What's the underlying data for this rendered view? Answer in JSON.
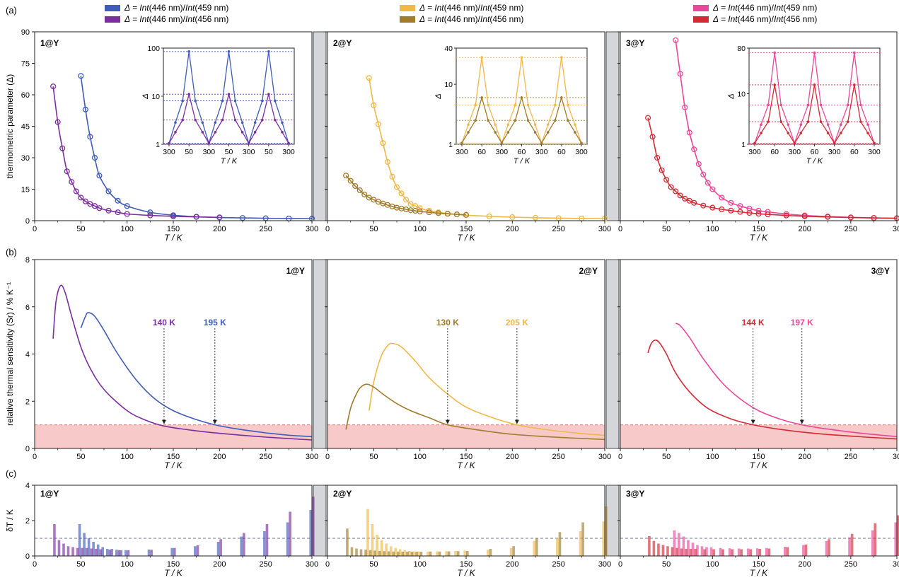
{
  "figure": {
    "panel_labels": [
      "(a)",
      "(b)",
      "(c)"
    ]
  },
  "legend": {
    "prefix": "Δ = ",
    "int_word": "Int",
    "line_459_tail": "(446 nm)/",
    "line_459_end": "(459 nm)",
    "line_456_end": "(456 nm)",
    "groups": [
      {
        "id": "1",
        "color_459": "#3f5cb8",
        "color_456": "#7b2f9e"
      },
      {
        "id": "2",
        "color_459": "#f0b847",
        "color_456": "#a07c2c"
      },
      {
        "id": "3",
        "color_459": "#e8489a",
        "color_456": "#d42a36"
      }
    ]
  },
  "axes": {
    "a_ylabel": "thermometric parameter (Δ)",
    "b_ylabel": "relative thermal sensitivity (Sr) / % K⁻¹",
    "c_ylabel": "δT / K",
    "xlabel": "T / K",
    "inset_ylabel": "Δ",
    "a_yticks": [
      "0",
      "15",
      "30",
      "45",
      "60",
      "75",
      "90"
    ],
    "b_yticks": [
      "0",
      "2",
      "4",
      "6",
      "8"
    ],
    "c_yticks": [
      "0",
      "2",
      "4"
    ],
    "xticks": [
      "0",
      "50",
      "100",
      "150",
      "200",
      "250",
      "300"
    ],
    "xticks_last_panel3": "30"
  },
  "sample_titles": [
    "1@Y",
    "2@Y",
    "3@Y"
  ],
  "insets": [
    {
      "yticks": [
        "1",
        "10",
        "100"
      ],
      "xticks": [
        "300",
        "50",
        "300",
        "50",
        "300",
        "50",
        "300"
      ]
    },
    {
      "yticks": [
        "1",
        "10",
        "40"
      ],
      "xticks": [
        "300",
        "60",
        "300",
        "60",
        "300",
        "60",
        "300"
      ]
    },
    {
      "yticks": [
        "1",
        "10",
        "80"
      ],
      "xticks": [
        "300",
        "60",
        "300",
        "60",
        "300",
        "60",
        "300"
      ]
    }
  ],
  "chart_data": [
    {
      "type": "scatter",
      "panel": "a",
      "title": "1@Y",
      "xlabel": "T / K",
      "ylabel": "thermometric parameter (Δ)",
      "xlim": [
        0,
        300
      ],
      "ylim": [
        0,
        90
      ],
      "series": [
        {
          "name": "Δ = Int(446 nm)/Int(459 nm)",
          "color": "#3f5cb8",
          "x": [
            50,
            55,
            60,
            65,
            70,
            80,
            90,
            100,
            125,
            150,
            175,
            200,
            225,
            250,
            275,
            300
          ],
          "y": [
            69,
            53,
            40,
            30,
            21.5,
            14,
            9.5,
            7,
            4,
            2.6,
            1.9,
            1.5,
            1.3,
            1.15,
            1.05,
            1
          ]
        },
        {
          "name": "Δ = Int(446 nm)/Int(456 nm)",
          "color": "#7b2f9e",
          "x": [
            20,
            25,
            30,
            35,
            40,
            45,
            50,
            55,
            60,
            65,
            70,
            80,
            90,
            100,
            125,
            150,
            175,
            200
          ],
          "y": [
            64,
            47,
            34.5,
            23.5,
            18.5,
            14,
            11,
            9.2,
            8,
            7,
            6,
            4.8,
            4,
            3.2,
            2.5,
            2.1,
            1.8,
            1.6
          ]
        }
      ],
      "inset": {
        "yscale": "log",
        "ylim": [
          1,
          100
        ],
        "peak_459": 85,
        "peak_456": 11,
        "mid_459": 8,
        "mid_456": 3.2
      }
    },
    {
      "type": "scatter",
      "panel": "a",
      "title": "2@Y",
      "xlabel": "T / K",
      "xlim": [
        0,
        300
      ],
      "ylim": [
        0,
        90
      ],
      "series": [
        {
          "name": "Δ = Int(446 nm)/Int(459 nm)",
          "color": "#f0b847",
          "x": [
            45,
            50,
            55,
            60,
            65,
            70,
            75,
            80,
            85,
            90,
            95,
            100,
            110,
            120,
            130,
            140,
            150,
            175,
            200,
            225,
            250,
            275,
            300
          ],
          "y": [
            68,
            55,
            46,
            37,
            28,
            21,
            16,
            13,
            10,
            8,
            7,
            6,
            4.8,
            4,
            3.4,
            3,
            2.6,
            2.1,
            1.7,
            1.4,
            1.2,
            1.05,
            1
          ]
        },
        {
          "name": "Δ = Int(446 nm)/Int(456 nm)",
          "color": "#a07c2c",
          "x": [
            20,
            25,
            30,
            35,
            40,
            45,
            50,
            55,
            60,
            65,
            70,
            75,
            80,
            85,
            90,
            95,
            100,
            110,
            120,
            130,
            140,
            150
          ],
          "y": [
            21.5,
            19,
            16.5,
            14.5,
            12.5,
            11,
            10,
            9,
            8.2,
            7.5,
            6.8,
            6.2,
            5.8,
            5.4,
            5,
            4.7,
            4.4,
            4,
            3.6,
            3.3,
            3,
            2.8
          ]
        }
      ],
      "inset": {
        "yscale": "log",
        "ylim": [
          1,
          40
        ],
        "peak_459": 28,
        "peak_456": 6,
        "mid_459": 4.5,
        "mid_456": 2.5
      }
    },
    {
      "type": "scatter",
      "panel": "a",
      "title": "3@Y",
      "xlabel": "T / K",
      "xlim": [
        0,
        300
      ],
      "ylim": [
        0,
        90
      ],
      "series": [
        {
          "name": "Δ = Int(446 nm)/Int(459 nm)",
          "color": "#e8489a",
          "x": [
            60,
            65,
            70,
            75,
            80,
            85,
            90,
            95,
            100,
            110,
            120,
            130,
            140,
            150,
            160,
            180,
            200,
            225,
            250,
            275,
            300
          ],
          "y": [
            86,
            70,
            54,
            42,
            34,
            27,
            22,
            18,
            15,
            11,
            8.5,
            7,
            5.8,
            4.8,
            4.2,
            3.2,
            2.5,
            2,
            1.6,
            1.3,
            1.15
          ]
        },
        {
          "name": "Δ = Int(446 nm)/Int(456 nm)",
          "color": "#d42a36",
          "x": [
            30,
            35,
            40,
            45,
            50,
            55,
            60,
            65,
            70,
            75,
            80,
            90,
            100,
            110,
            120,
            130,
            140,
            150,
            160,
            180,
            200,
            225,
            250,
            275,
            300
          ],
          "y": [
            49,
            40,
            30,
            24,
            19.5,
            16,
            14,
            12,
            10.5,
            9.5,
            8.5,
            7.2,
            6.2,
            5.4,
            4.8,
            4.2,
            3.7,
            3.3,
            3,
            2.5,
            2.1,
            1.8,
            1.5,
            1.3,
            1.15
          ]
        }
      ],
      "inset": {
        "yscale": "log",
        "ylim": [
          1,
          80
        ],
        "peak_459": 65,
        "peak_456": 15,
        "mid_459": 6,
        "mid_456": 2.8
      }
    },
    {
      "type": "line",
      "panel": "b",
      "title": "1@Y",
      "xlabel": "T / K",
      "ylabel": "relative thermal sensitivity (Sr) / % K⁻¹",
      "xlim": [
        0,
        300
      ],
      "ylim": [
        0,
        8
      ],
      "threshold": 1,
      "series": [
        {
          "name": "Δ = Int(446 nm)/Int(459 nm)",
          "color": "#3f5cb8",
          "x": [
            50,
            55,
            58,
            65,
            75,
            90,
            110,
            130,
            150,
            175,
            195,
            220,
            250,
            275,
            300
          ],
          "y": [
            5.1,
            5.6,
            5.75,
            5.6,
            5,
            4,
            2.9,
            2.1,
            1.6,
            1.22,
            1,
            0.82,
            0.66,
            0.56,
            0.5
          ]
        },
        {
          "name": "Δ = Int(446 nm)/Int(456 nm)",
          "color": "#7b2f9e",
          "x": [
            20,
            23,
            28,
            33,
            40,
            50,
            60,
            75,
            100,
            120,
            140,
            170,
            200,
            250,
            300
          ],
          "y": [
            4.65,
            6.2,
            6.9,
            6.6,
            5.6,
            4.3,
            3.4,
            2.5,
            1.6,
            1.2,
            0.95,
            0.77,
            0.64,
            0.48,
            0.36
          ]
        }
      ],
      "annotations": [
        {
          "text": "140 K",
          "x": 140,
          "color": "#7b2f9e"
        },
        {
          "text": "195 K",
          "x": 195,
          "color": "#3f5cb8"
        }
      ]
    },
    {
      "type": "line",
      "panel": "b",
      "title": "2@Y",
      "xlabel": "T / K",
      "xlim": [
        0,
        300
      ],
      "ylim": [
        0,
        8
      ],
      "threshold": 1,
      "series": [
        {
          "name": "Δ = Int(446 nm)/Int(459 nm)",
          "color": "#f0b847",
          "x": [
            45,
            50,
            58,
            65,
            70,
            80,
            95,
            110,
            130,
            150,
            175,
            205,
            240,
            270,
            300
          ],
          "y": [
            1.6,
            2.8,
            3.9,
            4.35,
            4.45,
            4.3,
            3.7,
            3,
            2.3,
            1.75,
            1.35,
            1,
            0.78,
            0.65,
            0.55
          ]
        },
        {
          "name": "Δ = Int(446 nm)/Int(456 nm)",
          "color": "#a07c2c",
          "x": [
            20,
            25,
            30,
            35,
            42,
            50,
            60,
            75,
            90,
            110,
            130,
            160,
            200,
            250,
            300
          ],
          "y": [
            0.8,
            1.7,
            2.2,
            2.55,
            2.72,
            2.6,
            2.3,
            1.9,
            1.6,
            1.3,
            1,
            0.8,
            0.6,
            0.47,
            0.38
          ]
        }
      ],
      "annotations": [
        {
          "text": "130 K",
          "x": 130,
          "color": "#a07c2c"
        },
        {
          "text": "205 K",
          "x": 205,
          "color": "#f0b847"
        }
      ]
    },
    {
      "type": "line",
      "panel": "b",
      "title": "3@Y",
      "xlabel": "T / K",
      "xlim": [
        0,
        300
      ],
      "ylim": [
        0,
        8
      ],
      "threshold": 1,
      "series": [
        {
          "name": "Δ = Int(446 nm)/Int(459 nm)",
          "color": "#e8489a",
          "x": [
            60,
            65,
            75,
            90,
            110,
            130,
            150,
            175,
            197,
            225,
            260,
            300
          ],
          "y": [
            5.3,
            5.2,
            4.7,
            3.8,
            2.8,
            2.1,
            1.6,
            1.22,
            1,
            0.82,
            0.65,
            0.5
          ]
        },
        {
          "name": "Δ = Int(446 nm)/Int(456 nm)",
          "color": "#d42a36",
          "x": [
            30,
            33,
            37,
            42,
            50,
            60,
            75,
            95,
            120,
            144,
            175,
            210,
            250,
            300
          ],
          "y": [
            4.05,
            4.4,
            4.58,
            4.5,
            4,
            3.2,
            2.4,
            1.7,
            1.25,
            1,
            0.8,
            0.64,
            0.52,
            0.4
          ]
        }
      ],
      "annotations": [
        {
          "text": "144 K",
          "x": 144,
          "color": "#d42a36"
        },
        {
          "text": "197 K",
          "x": 197,
          "color": "#e8489a"
        }
      ]
    },
    {
      "type": "bar",
      "panel": "c",
      "title": "1@Y",
      "xlabel": "T / K",
      "ylabel": "δT / K",
      "xlim": [
        0,
        300
      ],
      "ylim": [
        0,
        4
      ],
      "series": [
        {
          "name": "Δ = Int(446 nm)/Int(459 nm)",
          "color": "#3f5cb8",
          "x": [
            50,
            55,
            60,
            65,
            70,
            75,
            80,
            85,
            90,
            95,
            100,
            125,
            150,
            175,
            200,
            225,
            250,
            275,
            300
          ],
          "y": [
            1.8,
            1.3,
            1.0,
            0.8,
            0.65,
            0.5,
            0.4,
            0.4,
            0.35,
            0.32,
            0.33,
            0.36,
            0.45,
            0.55,
            0.8,
            1.1,
            1.4,
            1.9,
            2.6
          ]
        },
        {
          "name": "Δ = Int(446 nm)/Int(456 nm)",
          "color": "#7b2f9e",
          "x": [
            20,
            25,
            30,
            35,
            40,
            45,
            50,
            55,
            60,
            65,
            70,
            80,
            90,
            100,
            125,
            150,
            175,
            200,
            225,
            250,
            275,
            300
          ],
          "y": [
            1.8,
            0.9,
            0.7,
            0.55,
            0.5,
            0.45,
            0.45,
            0.45,
            0.42,
            0.4,
            0.38,
            0.35,
            0.33,
            0.32,
            0.35,
            0.45,
            0.6,
            0.95,
            1.3,
            1.8,
            2.5,
            3.35
          ]
        }
      ]
    },
    {
      "type": "bar",
      "panel": "c",
      "title": "2@Y",
      "xlabel": "T / K",
      "xlim": [
        0,
        300
      ],
      "ylim": [
        0,
        4
      ],
      "series": [
        {
          "name": "Δ = Int(446 nm)/Int(459 nm)",
          "color": "#f0b847",
          "x": [
            45,
            50,
            55,
            60,
            65,
            70,
            75,
            80,
            85,
            90,
            95,
            100,
            110,
            120,
            130,
            140,
            150,
            175,
            200,
            225,
            250,
            275,
            300
          ],
          "y": [
            2.65,
            1.8,
            1.2,
            0.9,
            0.7,
            0.55,
            0.45,
            0.38,
            0.32,
            0.28,
            0.26,
            0.25,
            0.25,
            0.26,
            0.27,
            0.28,
            0.3,
            0.35,
            0.45,
            0.85,
            1.0,
            1.4,
            1.95
          ]
        },
        {
          "name": "Δ = Int(446 nm)/Int(456 nm)",
          "color": "#a07c2c",
          "x": [
            20,
            25,
            30,
            35,
            40,
            45,
            50,
            55,
            60,
            65,
            70,
            75,
            80,
            85,
            90,
            95,
            100,
            110,
            120,
            130,
            140,
            150,
            175,
            200,
            225,
            250,
            275,
            300
          ],
          "y": [
            1.55,
            0.5,
            0.42,
            0.38,
            0.35,
            0.33,
            0.3,
            0.28,
            0.27,
            0.26,
            0.25,
            0.25,
            0.24,
            0.24,
            0.24,
            0.24,
            0.24,
            0.25,
            0.25,
            0.26,
            0.27,
            0.28,
            0.4,
            0.55,
            1.0,
            1.35,
            1.9,
            2.8
          ]
        }
      ]
    },
    {
      "type": "bar",
      "panel": "c",
      "title": "3@Y",
      "xlabel": "T / K",
      "xlim": [
        0,
        300
      ],
      "ylim": [
        0,
        4
      ],
      "series": [
        {
          "name": "Δ = Int(446 nm)/Int(459 nm)",
          "color": "#e8489a",
          "x": [
            60,
            65,
            70,
            75,
            80,
            85,
            90,
            95,
            100,
            110,
            120,
            130,
            140,
            150,
            160,
            180,
            200,
            225,
            250,
            275,
            300
          ],
          "y": [
            1.45,
            1.3,
            1.1,
            0.9,
            0.75,
            0.6,
            0.55,
            0.5,
            0.48,
            0.45,
            0.43,
            0.42,
            0.42,
            0.43,
            0.45,
            0.52,
            0.62,
            0.85,
            1.05,
            1.45,
            1.9
          ]
        },
        {
          "name": "Δ = Int(446 nm)/Int(456 nm)",
          "color": "#d42a36",
          "x": [
            30,
            35,
            40,
            45,
            50,
            55,
            60,
            65,
            70,
            75,
            80,
            90,
            100,
            110,
            120,
            130,
            140,
            150,
            160,
            180,
            200,
            225,
            250,
            275,
            300
          ],
          "y": [
            1.12,
            0.85,
            0.7,
            0.62,
            0.55,
            0.5,
            0.45,
            0.42,
            0.4,
            0.4,
            0.4,
            0.38,
            0.38,
            0.38,
            0.38,
            0.38,
            0.38,
            0.4,
            0.42,
            0.5,
            0.65,
            0.95,
            1.25,
            1.85,
            2.3
          ]
        }
      ]
    }
  ]
}
